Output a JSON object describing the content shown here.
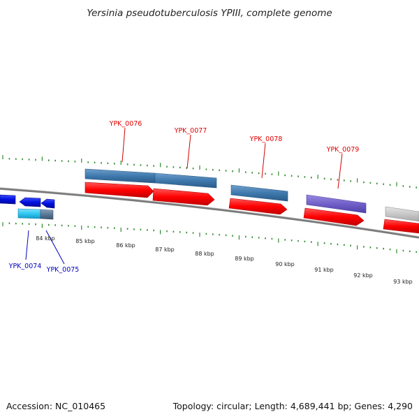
{
  "title": "Yersinia pseudotuberculosis YPIII, complete genome",
  "footer": {
    "accession": "Accession: NC_010465",
    "summary": "Topology: circular; Length: 4,689,441 bp; Genes: 4,290"
  },
  "colors": {
    "cds": "#ff0000",
    "gene_blue": "#3f79ad",
    "gene_purple": "#7060c8",
    "gene_grey": "#c8c8c8",
    "gene_dark_blue": "#0010e0",
    "gene_cyan": "#30c8f0",
    "tick": "#2e8b2e",
    "backbone": "#888888",
    "label_red": "#e00000",
    "label_blue": "#0000c0"
  },
  "ticks": [
    {
      "label": "84 kbp"
    },
    {
      "label": "85 kbp"
    },
    {
      "label": "86 kbp"
    },
    {
      "label": "87 kbp"
    },
    {
      "label": "88 kbp"
    },
    {
      "label": "89 kbp"
    },
    {
      "label": "90 kbp"
    },
    {
      "label": "91 kbp"
    },
    {
      "label": "92 kbp"
    },
    {
      "label": "93 kbp"
    }
  ],
  "gene_labels": {
    "top": [
      {
        "name": "YPK_0076"
      },
      {
        "name": "YPK_0077"
      },
      {
        "name": "YPK_0078"
      },
      {
        "name": "YPK_0079"
      }
    ],
    "bottom": [
      {
        "name": "YPK_0074"
      },
      {
        "name": "YPK_0075"
      }
    ]
  }
}
